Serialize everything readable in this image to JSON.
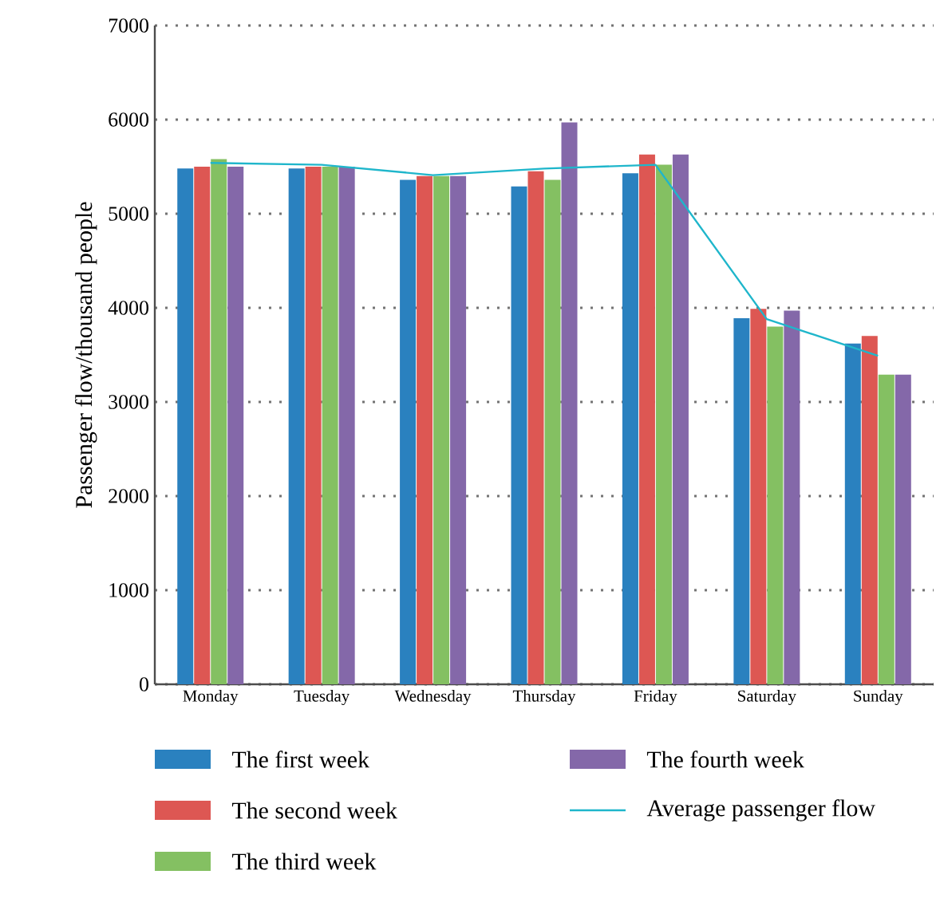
{
  "chart_data": {
    "type": "bar",
    "ylabel": "Passenger flow/thousand people",
    "categories": [
      "Monday",
      "Tuesday",
      "Wednesday",
      "Thursday",
      "Friday",
      "Saturday",
      "Sunday"
    ],
    "series": [
      {
        "name": "The first week",
        "color": "#2a81bf",
        "values": [
          5480,
          5480,
          5360,
          5290,
          5430,
          3890,
          3620
        ]
      },
      {
        "name": "The second week",
        "color": "#dd5753",
        "values": [
          5500,
          5500,
          5400,
          5450,
          5630,
          3990,
          3700
        ]
      },
      {
        "name": "The third week",
        "color": "#84c062",
        "values": [
          5580,
          5500,
          5400,
          5360,
          5520,
          3800,
          3290
        ]
      },
      {
        "name": "The fourth week",
        "color": "#8468a9",
        "values": [
          5500,
          5500,
          5400,
          5970,
          5630,
          3970,
          3290
        ]
      },
      {
        "name": "Average passenger flow",
        "type": "line",
        "color": "#1fb6cb",
        "values": [
          5540,
          5520,
          5410,
          5480,
          5520,
          3880,
          3490
        ]
      }
    ],
    "ylim": [
      0,
      7000
    ],
    "yticks": [
      0,
      1000,
      2000,
      3000,
      4000,
      5000,
      6000,
      7000
    ],
    "grid": "y",
    "legend": "bottom"
  }
}
